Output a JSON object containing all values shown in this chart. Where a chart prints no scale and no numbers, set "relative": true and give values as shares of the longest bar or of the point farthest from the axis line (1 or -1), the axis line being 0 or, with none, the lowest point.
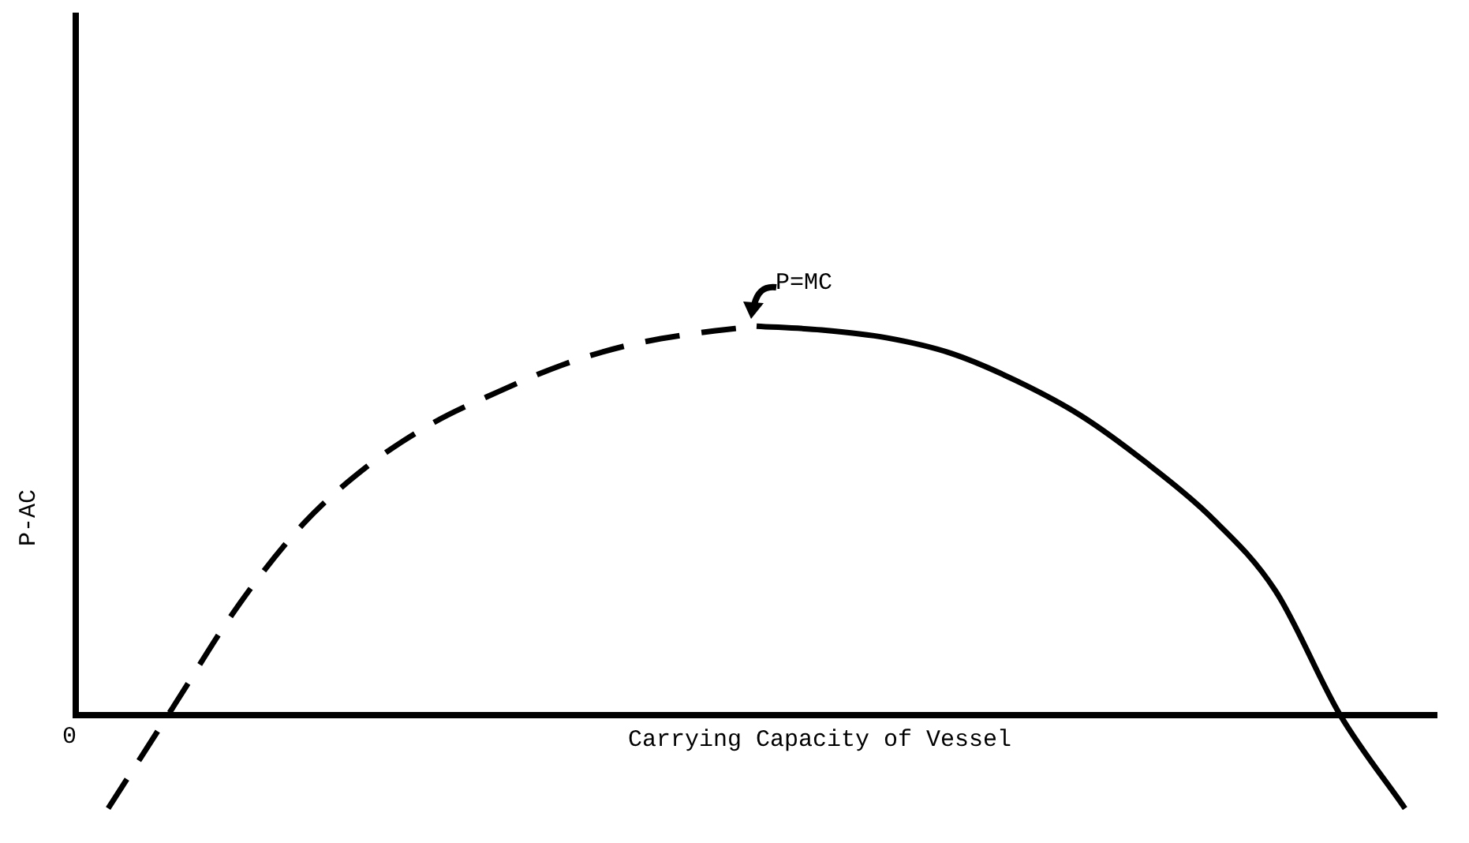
{
  "chart_data": {
    "type": "line",
    "relative": true,
    "xlabel": "Carrying Capacity of Vessel",
    "ylabel": "P-AC",
    "categories": [
      null,
      null,
      null,
      null,
      null,
      null,
      null,
      null,
      null,
      null,
      null,
      null,
      null,
      null,
      null,
      null,
      null,
      null,
      null,
      null,
      null
    ],
    "series": [
      {
        "color": "#000000",
        "line_style": "dashed",
        "values": [
          -0.24,
          0.02,
          0.28,
          0.49,
          0.64,
          0.75,
          0.83,
          0.9,
          0.95,
          0.98,
          1,
          null,
          null,
          null,
          null,
          null,
          null,
          null,
          null,
          null,
          null
        ]
      },
      {
        "color": "#000000",
        "line_style": "solid",
        "values": [
          null,
          null,
          null,
          null,
          null,
          null,
          null,
          null,
          null,
          null,
          1,
          0.99,
          0.97,
          0.93,
          0.86,
          0.77,
          0.65,
          0.51,
          0.32,
          0,
          -0.24
        ]
      }
    ],
    "annotations": [
      "0",
      "P=MC"
    ],
    "grid": false,
    "legend": false,
    "marker": "none"
  }
}
